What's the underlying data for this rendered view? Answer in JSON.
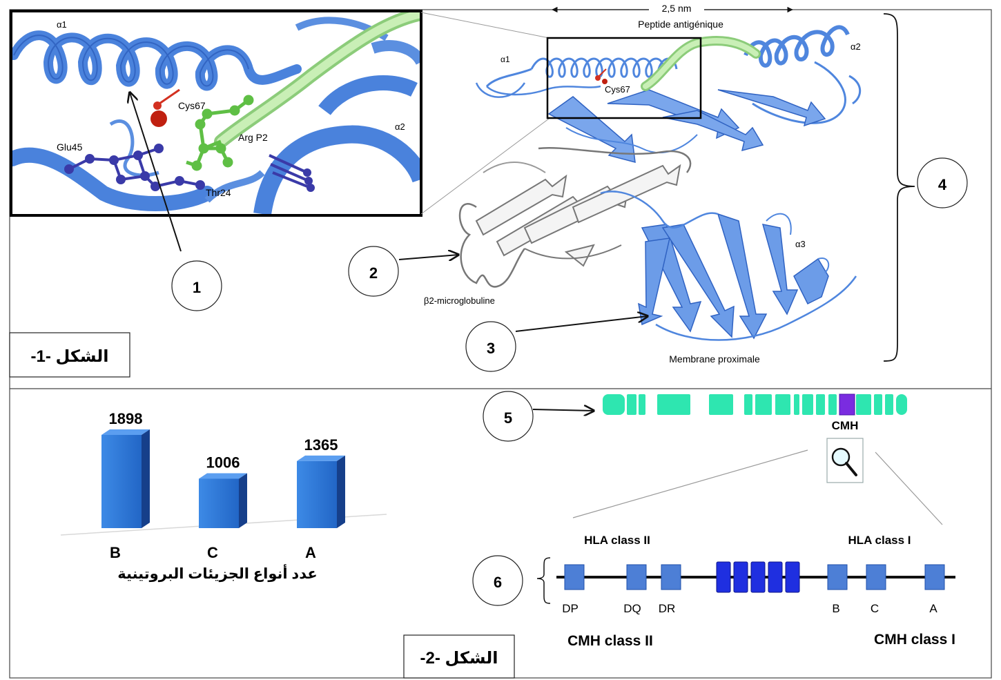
{
  "figure1": {
    "caption": "الشكل -1-",
    "inset_labels": {
      "alpha1": "α1",
      "alpha2": "α2",
      "cys67": "Cys67",
      "arg_p2": "Arg P2",
      "glu45": "Glu45",
      "thr24": "Thr24"
    },
    "main_labels": {
      "scale": "2,5 nm",
      "peptide": "Peptide antigénique",
      "alpha1": "α1",
      "alpha2": "α2",
      "alpha3": "α3",
      "cys67": "Cys67",
      "b2m": "β2-microglobuline",
      "membrane": "Membrane proximale"
    },
    "markers": [
      "1",
      "2",
      "3",
      "4"
    ]
  },
  "figure2": {
    "caption": "الشكل -2-",
    "chart_data": {
      "type": "bar",
      "categories": [
        "B",
        "C",
        "A"
      ],
      "values": [
        1898,
        1006,
        1365
      ],
      "xlabel": "عدد أنواع الجزيئات البروتينية",
      "ylim": [
        0,
        2000
      ],
      "color": "#2e78d8"
    },
    "chromosome": {
      "locus_label": "CMH",
      "marker": "5",
      "color": "#2ee6b0",
      "locus_color": "#7a2ce0"
    },
    "gene_map": {
      "marker": "6",
      "class2_header": "HLA class II",
      "class1_header": "HLA class I",
      "class2_genes": [
        "DP",
        "DQ",
        "DR"
      ],
      "class1_genes": [
        "B",
        "C",
        "A"
      ],
      "class2_title": "CMH class II",
      "class1_title": "CMH class I",
      "gene_color": "#4d7fd6",
      "middle_color": "#1f2fe0"
    }
  },
  "colors": {
    "ribbon": "#5b8fe0",
    "ribbon_dark": "#2f62c2",
    "peptide": "#b8e6a6",
    "grey_ribbon": "#8a8a8a",
    "red": "#cc2a1a",
    "green": "#5fbf45",
    "purple": "#3a3aa8"
  }
}
